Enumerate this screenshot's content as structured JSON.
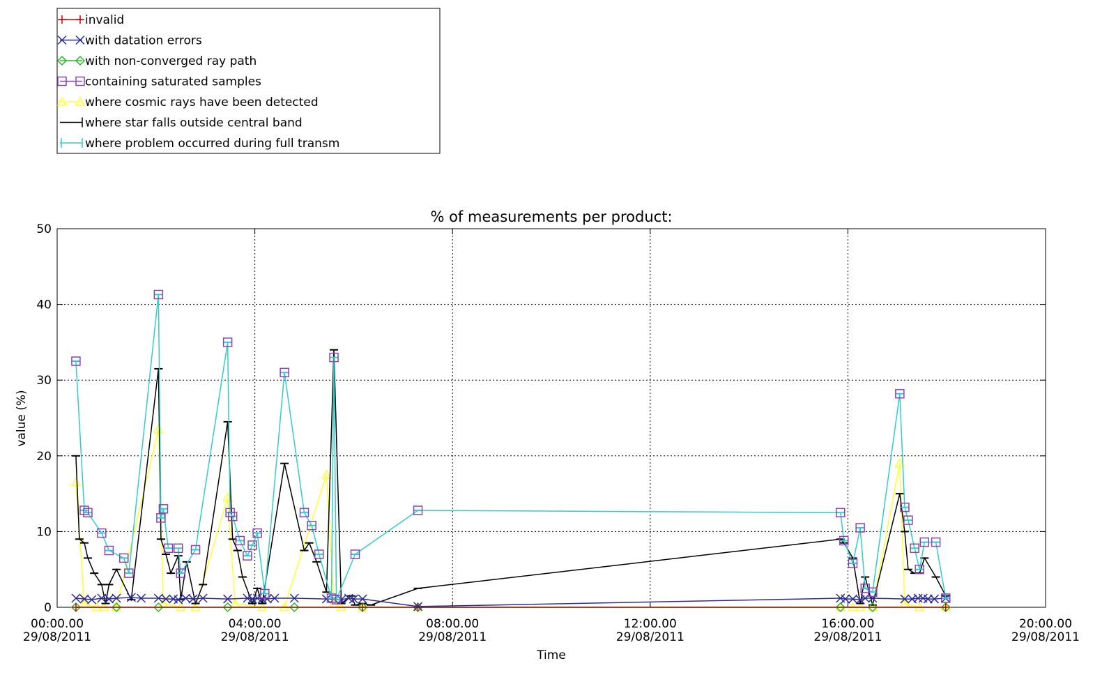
{
  "chart_data": {
    "type": "line",
    "title": "% of measurements per product:",
    "xlabel": "Time",
    "ylabel": "value (%)",
    "xlim": [
      "29/08/2011 00:00",
      "29/08/2011 20:00"
    ],
    "ylim": [
      0,
      50
    ],
    "grid": true,
    "grid_style": "dotted",
    "legend_position": "top-left, above the plot",
    "x_ticks": [
      {
        "time": "00:00.00",
        "date": "29/08/2011",
        "hour": 0
      },
      {
        "time": "04:00.00",
        "date": "29/08/2011",
        "hour": 4
      },
      {
        "time": "08:00.00",
        "date": "29/08/2011",
        "hour": 8
      },
      {
        "time": "12:00.00",
        "date": "29/08/2011",
        "hour": 12
      },
      {
        "time": "16:00.00",
        "date": "29/08/2011",
        "hour": 16
      },
      {
        "time": "20:00.00",
        "date": "29/08/2011",
        "hour": 20
      }
    ],
    "y_ticks": [
      0,
      10,
      20,
      30,
      40,
      50
    ],
    "series": [
      {
        "name": "invalid",
        "color": "#cc0000",
        "marker": "plus",
        "x": [
          0.38,
          6.18,
          7.3,
          17.98
        ],
        "y": [
          0,
          0,
          0,
          0
        ]
      },
      {
        "name": "with datation errors",
        "color": "#2b2b9b",
        "marker": "x",
        "x": [
          0.38,
          0.55,
          0.7,
          0.9,
          1.05,
          1.2,
          1.5,
          1.7,
          2.05,
          2.2,
          2.35,
          2.45,
          2.6,
          2.75,
          2.95,
          3.45,
          3.85,
          3.95,
          4.05,
          4.15,
          4.25,
          4.4,
          4.8,
          5.45,
          5.6,
          5.75,
          5.9,
          6.0,
          6.18,
          7.3,
          15.85,
          15.95,
          16.1,
          16.25,
          16.35,
          16.5,
          17.15,
          17.3,
          17.42,
          17.52,
          17.62,
          17.75,
          17.98
        ],
        "y": [
          1.2,
          1.1,
          1.0,
          1.2,
          1.1,
          1.2,
          1.3,
          1.2,
          1.2,
          1.1,
          1.1,
          1.0,
          1.2,
          1.1,
          1.2,
          1.1,
          1.2,
          1.1,
          1.2,
          1.1,
          1.1,
          1.2,
          1.2,
          1.1,
          1.1,
          1.0,
          1.2,
          1.1,
          1.1,
          0.1,
          1.2,
          1.1,
          1.1,
          1.0,
          1.2,
          1.2,
          1.1,
          1.1,
          1.2,
          1.2,
          1.1,
          1.1,
          1.2
        ]
      },
      {
        "name": "with non-converged ray path",
        "color": "#22bb22",
        "marker": "diamond",
        "x": [
          0.38,
          1.2,
          2.05,
          3.45,
          4.8,
          6.18,
          7.3,
          15.85,
          16.5,
          17.98
        ],
        "y": [
          0,
          0,
          0,
          0,
          0,
          0,
          0,
          0,
          0,
          0
        ]
      },
      {
        "name": "containing saturated samples",
        "color": "#8844bb",
        "marker": "square",
        "x": [
          0.38,
          0.55,
          0.62,
          0.9,
          1.05,
          1.35,
          1.45,
          2.05,
          2.1,
          2.15,
          2.25,
          2.45,
          2.5,
          2.8,
          3.45,
          3.5,
          3.55,
          3.7,
          3.85,
          3.95,
          4.05,
          4.2,
          4.6,
          5.0,
          5.15,
          5.3,
          5.55,
          5.6,
          5.65,
          6.03,
          7.3,
          15.85,
          15.92,
          16.1,
          16.25,
          16.35,
          16.5,
          17.05,
          17.15,
          17.22,
          17.35,
          17.45,
          17.55,
          17.78,
          17.98
        ],
        "y": [
          32.5,
          12.8,
          12.5,
          9.8,
          7.5,
          6.5,
          4.5,
          41.3,
          11.8,
          13.0,
          7.8,
          7.8,
          4.5,
          7.6,
          35.0,
          12.5,
          12.0,
          8.8,
          6.8,
          8.2,
          9.8,
          1.8,
          31.0,
          12.5,
          10.8,
          7.0,
          1.2,
          33.0,
          1.0,
          7.0,
          12.8,
          12.5,
          8.8,
          5.8,
          10.5,
          2.5,
          2.0,
          28.2,
          13.2,
          11.5,
          7.8,
          5.0,
          8.6,
          8.6,
          1.2
        ]
      },
      {
        "name": "where cosmic rays have been detected",
        "color": "#ffff33",
        "marker": "triangle",
        "x": [
          0.38,
          0.55,
          0.8,
          0.95,
          1.2,
          2.05,
          2.15,
          2.5,
          2.8,
          3.45,
          3.6,
          4.15,
          4.6,
          5.45,
          5.6,
          5.75,
          6.18,
          7.3,
          15.85,
          16.1,
          16.25,
          16.5,
          17.05,
          17.15,
          17.45,
          17.98
        ],
        "y": [
          16.5,
          0.5,
          0,
          0,
          0,
          23.5,
          0.5,
          0,
          0,
          14.5,
          0.5,
          0,
          0,
          17.5,
          0.5,
          0,
          0,
          0,
          0,
          0,
          0,
          0,
          19.0,
          0.5,
          0,
          0
        ]
      },
      {
        "name": "where star falls outside central band",
        "color": "#000000",
        "marker": "bar",
        "x": [
          0.38,
          0.45,
          0.55,
          0.62,
          0.75,
          0.9,
          0.98,
          1.05,
          1.2,
          1.5,
          2.05,
          2.1,
          2.2,
          2.3,
          2.45,
          2.5,
          2.62,
          2.8,
          2.95,
          3.45,
          3.55,
          3.65,
          3.75,
          3.95,
          4.05,
          4.15,
          4.6,
          5.0,
          5.1,
          5.25,
          5.45,
          5.6,
          5.75,
          5.95,
          6.03,
          6.18,
          6.35,
          7.3,
          15.85,
          15.92,
          16.1,
          16.25,
          16.35,
          16.5,
          17.05,
          17.15,
          17.22,
          17.35,
          17.45,
          17.55,
          17.78,
          17.98
        ],
        "y": [
          20.0,
          9.0,
          8.5,
          6.5,
          4.5,
          3.0,
          0.5,
          3.0,
          5.0,
          1.0,
          31.5,
          9.0,
          7.0,
          4.5,
          6.8,
          1.0,
          6.0,
          0.5,
          3.0,
          24.5,
          9.0,
          7.5,
          4.0,
          0.5,
          2.5,
          0.5,
          19.0,
          7.5,
          8.5,
          6.0,
          2.0,
          34.0,
          0.5,
          1.5,
          0.3,
          0.5,
          0.3,
          2.5,
          9.0,
          8.5,
          6.5,
          0.5,
          4.0,
          0.3,
          15.0,
          10.0,
          5.0,
          4.5,
          4.5,
          6.5,
          4.0,
          1.5
        ]
      },
      {
        "name": "where problem occurred during full transm",
        "color": "#33cccc",
        "marker": "bar",
        "x": [
          0.38,
          0.55,
          0.62,
          0.9,
          1.05,
          1.35,
          1.45,
          2.05,
          2.1,
          2.15,
          2.25,
          2.45,
          2.5,
          2.8,
          3.45,
          3.5,
          3.55,
          3.7,
          3.85,
          3.95,
          4.05,
          4.2,
          4.6,
          5.0,
          5.15,
          5.3,
          5.55,
          5.6,
          5.65,
          6.03,
          7.3,
          15.85,
          15.92,
          16.1,
          16.25,
          16.35,
          16.5,
          17.05,
          17.15,
          17.22,
          17.35,
          17.45,
          17.55,
          17.78,
          17.98
        ],
        "y": [
          32.5,
          12.8,
          12.5,
          9.8,
          7.5,
          6.5,
          4.5,
          41.3,
          11.8,
          13.0,
          7.8,
          7.8,
          4.5,
          7.6,
          35.0,
          12.5,
          12.0,
          8.8,
          6.8,
          8.2,
          9.8,
          1.8,
          31.0,
          12.5,
          10.8,
          7.0,
          1.2,
          33.0,
          1.0,
          7.0,
          12.8,
          12.5,
          8.8,
          5.8,
          10.5,
          2.5,
          2.0,
          28.2,
          13.2,
          11.5,
          7.8,
          5.0,
          8.6,
          8.6,
          1.2
        ]
      }
    ]
  }
}
